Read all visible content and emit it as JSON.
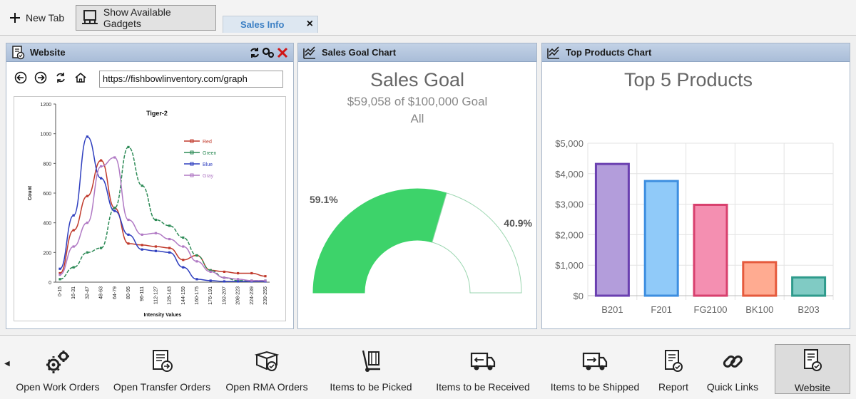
{
  "toolbar": {
    "new_tab": "New Tab",
    "show_gadgets": "Show Available Gadgets",
    "active_tab": "Sales Info",
    "active_tab_close": "×"
  },
  "website_panel": {
    "title": "Website",
    "url": "https://fishbowlinventory.com/graph"
  },
  "sales_goal_panel": {
    "title": "Sales Goal Chart",
    "chart_title": "Sales Goal",
    "subtitle": "$59,058 of $100,000 Goal",
    "filter": "All",
    "achieved_label": "59.1%",
    "remaining_label": "40.9%"
  },
  "top_products_panel": {
    "title": "Top Products Chart",
    "chart_title": "Top 5 Products"
  },
  "chart_data": [
    {
      "type": "line",
      "title": "Tiger-2",
      "xlabel": "Intensity Values",
      "ylabel": "Count",
      "ylim": [
        0,
        1200
      ],
      "yticks": [
        0,
        200,
        400,
        600,
        800,
        1000,
        1200
      ],
      "categories": [
        "0-15",
        "16-31",
        "32-47",
        "48-63",
        "64-79",
        "80-95",
        "96-111",
        "112-127",
        "128-143",
        "144-159",
        "160-175",
        "176-191",
        "192-207",
        "208-223",
        "224-239",
        "239-255"
      ],
      "series": [
        {
          "name": "Red",
          "color": "#c0392b",
          "values": [
            60,
            350,
            580,
            820,
            500,
            260,
            250,
            240,
            230,
            150,
            180,
            80,
            70,
            60,
            60,
            40
          ]
        },
        {
          "name": "Green",
          "color": "#2e8b57",
          "values": [
            20,
            100,
            200,
            230,
            500,
            910,
            650,
            420,
            380,
            300,
            180,
            80,
            30,
            10,
            10,
            10
          ]
        },
        {
          "name": "Blue",
          "color": "#2f3fbf",
          "values": [
            90,
            450,
            980,
            700,
            480,
            320,
            220,
            210,
            200,
            100,
            20,
            10,
            5,
            5,
            5,
            5
          ]
        },
        {
          "name": "Gray",
          "color": "#b079c4",
          "values": [
            50,
            240,
            400,
            780,
            840,
            420,
            320,
            330,
            290,
            240,
            140,
            70,
            30,
            20,
            10,
            10
          ]
        }
      ],
      "grid": false,
      "legend": "top-right"
    },
    {
      "type": "pie",
      "subtype": "half-donut gauge",
      "title": "Sales Goal",
      "values": [
        59.1,
        40.9
      ],
      "labels": [
        "59.1%",
        "40.9%"
      ],
      "colors": [
        "#3dd36a",
        "#ffffff"
      ]
    },
    {
      "type": "bar",
      "title": "Top 5 Products",
      "categories": [
        "B201",
        "F201",
        "FG2100",
        "BK100",
        "B203"
      ],
      "values": [
        4320,
        3760,
        2980,
        1100,
        600
      ],
      "ylim": [
        0,
        5000
      ],
      "yticks": [
        "$0",
        "$1,000",
        "$2,000",
        "$3,000",
        "$4,000",
        "$5,000"
      ],
      "grid": true,
      "bar_fill": [
        "#b39ddb",
        "#90caf9",
        "#f48fb1",
        "#ffab91",
        "#80cbc4"
      ],
      "bar_stroke": [
        "#6a3fb0",
        "#3d8ee0",
        "#d8406e",
        "#e55a3d",
        "#2f9b8c"
      ]
    }
  ],
  "launcher": {
    "items": [
      {
        "label": "Open Work Orders",
        "icon": "gears-icon"
      },
      {
        "label": "Open Transfer Orders",
        "icon": "transfer-doc-icon"
      },
      {
        "label": "Open RMA Orders",
        "icon": "rma-box-icon"
      },
      {
        "label": "Items to be Picked",
        "icon": "hand-truck-icon"
      },
      {
        "label": "Items to be Received",
        "icon": "truck-in-icon"
      },
      {
        "label": "Items to be Shipped",
        "icon": "truck-out-icon"
      },
      {
        "label": "Report",
        "icon": "report-icon"
      },
      {
        "label": "Quick Links",
        "icon": "link-icon"
      },
      {
        "label": "Website",
        "icon": "website-icon"
      }
    ]
  }
}
